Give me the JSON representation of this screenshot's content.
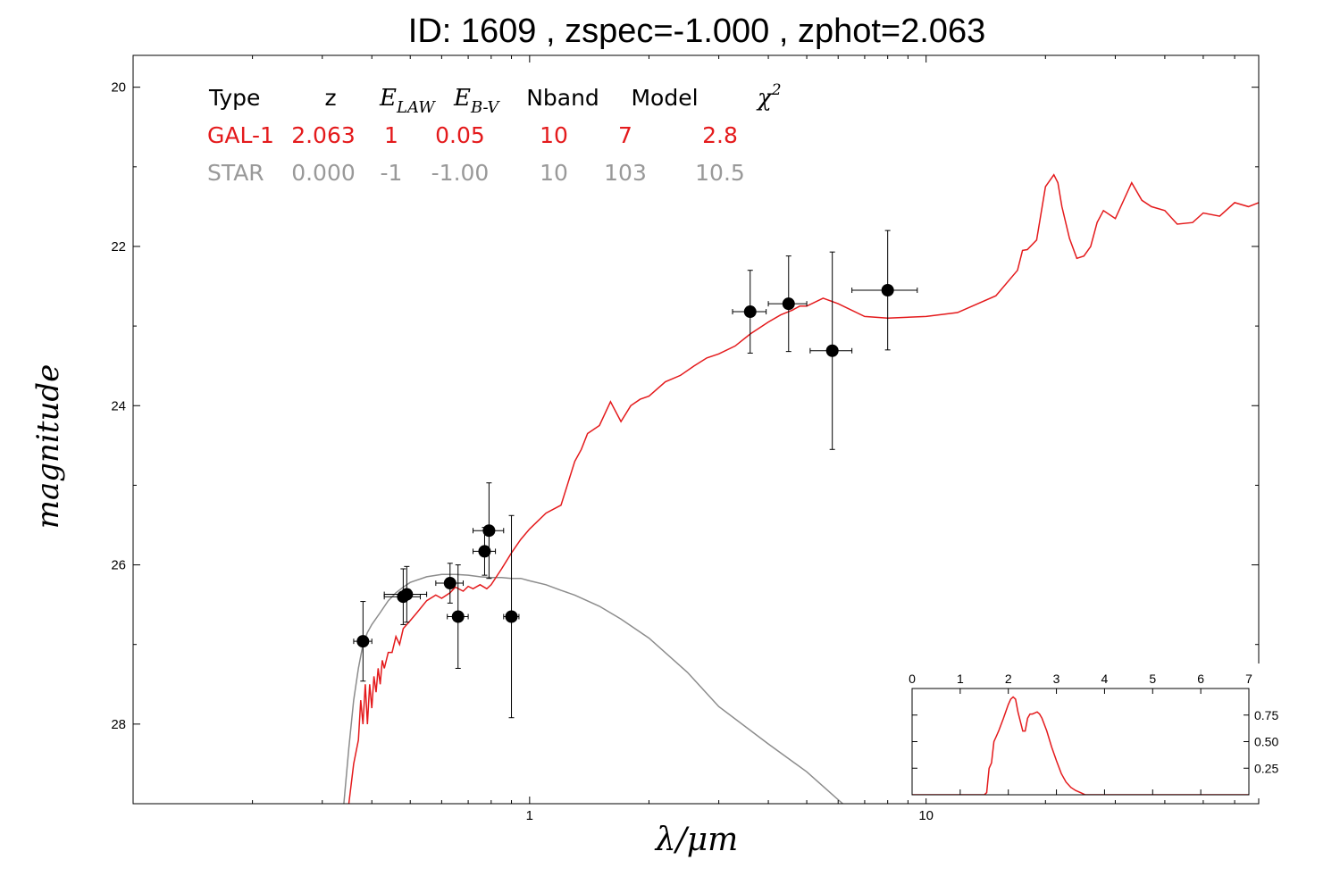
{
  "title": "ID:  1609  , zspec=-1.000 , zphot=2.063",
  "colors": {
    "galaxy": "#e41a1c",
    "star": "#8c8c8c",
    "points": "#000000"
  },
  "table": {
    "headers": [
      "Type",
      "z",
      "E_LAW",
      "E_B-V",
      "Nband",
      "Model",
      "χ²"
    ],
    "rows": [
      {
        "color": "#e41a1c",
        "cells": [
          "GAL-1",
          "2.063",
          "1",
          "0.05",
          "10",
          "7",
          "2.8"
        ]
      },
      {
        "color": "#999999",
        "cells": [
          "STAR",
          "0.000",
          "-1",
          "-1.00",
          "10",
          "103",
          "10.5"
        ]
      }
    ]
  },
  "chart_data": [
    {
      "type": "scatter",
      "title": "ID:  1609  , zspec=-1.000 , zphot=2.063",
      "xlabel": "λ/μm",
      "ylabel": "magnitude",
      "xscale": "log",
      "xlim": [
        0.1,
        69
      ],
      "ylim": [
        29,
        19.6
      ],
      "yinverted": true,
      "xticks": [
        1,
        10
      ],
      "yticks": [
        20,
        22,
        24,
        26,
        28
      ],
      "grid": false,
      "photometry": [
        {
          "x": 0.38,
          "y": 26.96,
          "xerr": 0.02,
          "yerr": 0.5
        },
        {
          "x": 0.48,
          "y": 26.4,
          "xerr": 0.05,
          "yerr": 0.35
        },
        {
          "x": 0.49,
          "y": 26.37,
          "xerr": 0.06,
          "yerr": 0.35
        },
        {
          "x": 0.63,
          "y": 26.23,
          "xerr": 0.05,
          "yerr": 0.25
        },
        {
          "x": 0.66,
          "y": 26.65,
          "xerr": 0.04,
          "yerr": 0.65
        },
        {
          "x": 0.77,
          "y": 25.83,
          "xerr": 0.05,
          "yerr": 0.3
        },
        {
          "x": 0.79,
          "y": 25.57,
          "xerr": 0.07,
          "yerr": 0.6
        },
        {
          "x": 0.9,
          "y": 26.65,
          "xerr": 0.04,
          "yerr": 1.27
        },
        {
          "x": 3.6,
          "y": 22.82,
          "xerr": 0.35,
          "yerr": 0.52
        },
        {
          "x": 4.5,
          "y": 22.72,
          "xerr": 0.5,
          "yerr": 0.6
        },
        {
          "x": 5.8,
          "y": 23.31,
          "xerr": 0.7,
          "yerr": 1.24
        },
        {
          "x": 8.0,
          "y": 22.55,
          "xerr": 1.5,
          "yerr": 0.75
        }
      ],
      "series": [
        {
          "name": "GAL-1",
          "x": [
            0.35,
            0.36,
            0.37,
            0.375,
            0.38,
            0.385,
            0.39,
            0.395,
            0.4,
            0.405,
            0.41,
            0.415,
            0.42,
            0.425,
            0.43,
            0.44,
            0.45,
            0.46,
            0.47,
            0.48,
            0.5,
            0.52,
            0.55,
            0.58,
            0.6,
            0.63,
            0.65,
            0.68,
            0.7,
            0.72,
            0.75,
            0.78,
            0.8,
            0.85,
            0.9,
            0.95,
            1.0,
            1.1,
            1.2,
            1.3,
            1.35,
            1.4,
            1.5,
            1.6,
            1.7,
            1.8,
            1.9,
            2.0,
            2.2,
            2.4,
            2.6,
            2.8,
            3.0,
            3.3,
            3.6,
            4.0,
            4.3,
            4.6,
            4.8,
            5.0,
            5.5,
            6.0,
            7.0,
            8.0,
            10,
            12,
            15,
            17,
            17.5,
            18,
            19,
            20,
            21,
            21.5,
            22,
            23,
            24,
            25,
            26,
            27,
            28,
            30,
            33,
            35,
            37,
            40,
            43,
            47,
            50,
            55,
            60,
            65,
            69
          ],
          "y": [
            29,
            28.5,
            28.2,
            27.7,
            28.0,
            27.5,
            28.0,
            27.5,
            27.8,
            27.4,
            27.6,
            27.3,
            27.5,
            27.2,
            27.3,
            27.1,
            27.1,
            26.9,
            27.0,
            26.8,
            26.7,
            26.6,
            26.45,
            26.38,
            26.42,
            26.35,
            26.28,
            26.33,
            26.27,
            26.3,
            26.25,
            26.3,
            26.25,
            26.05,
            25.85,
            25.68,
            25.55,
            25.35,
            25.25,
            24.7,
            24.55,
            24.35,
            24.25,
            23.95,
            24.2,
            24.0,
            23.92,
            23.88,
            23.7,
            23.62,
            23.5,
            23.4,
            23.35,
            23.25,
            23.1,
            22.95,
            22.86,
            22.8,
            22.75,
            22.75,
            22.65,
            22.72,
            22.88,
            22.9,
            22.88,
            22.83,
            22.62,
            22.3,
            22.05,
            22.04,
            21.92,
            21.25,
            21.1,
            21.2,
            21.5,
            21.9,
            22.15,
            22.12,
            22.0,
            21.7,
            21.55,
            21.65,
            21.2,
            21.42,
            21.5,
            21.55,
            21.72,
            21.7,
            21.58,
            21.62,
            21.45,
            21.5,
            21.45
          ],
          "color": "#e41a1c"
        },
        {
          "name": "STAR",
          "x": [
            0.34,
            0.35,
            0.36,
            0.37,
            0.38,
            0.39,
            0.4,
            0.42,
            0.44,
            0.46,
            0.48,
            0.5,
            0.55,
            0.6,
            0.65,
            0.7,
            0.75,
            0.8,
            0.85,
            0.9,
            0.95,
            1.0,
            1.1,
            1.2,
            1.3,
            1.5,
            1.7,
            2.0,
            2.5,
            3.0,
            4.0,
            5.0,
            6.0,
            6.5
          ],
          "y": [
            29,
            28.3,
            27.7,
            27.3,
            27.0,
            26.85,
            26.75,
            26.6,
            26.45,
            26.35,
            26.28,
            26.22,
            26.15,
            26.12,
            26.12,
            26.13,
            26.15,
            26.16,
            26.16,
            26.17,
            26.17,
            26.2,
            26.25,
            26.32,
            26.38,
            26.52,
            26.68,
            26.92,
            27.35,
            27.78,
            28.25,
            28.6,
            28.95,
            29.1
          ],
          "color": "#8c8c8c"
        }
      ]
    },
    {
      "type": "line",
      "xlim": [
        0,
        7
      ],
      "ylim": [
        0,
        1
      ],
      "xticks": [
        0,
        1,
        2,
        3,
        4,
        5,
        6,
        7
      ],
      "yticks": [
        0.25,
        0.5,
        0.75
      ],
      "series": [
        {
          "x": [
            0,
            1.0,
            1.5,
            1.55,
            1.6,
            1.65,
            1.7,
            1.75,
            1.8,
            1.9,
            2.0,
            2.05,
            2.1,
            2.15,
            2.2,
            2.3,
            2.35,
            2.4,
            2.45,
            2.5,
            2.55,
            2.6,
            2.65,
            2.7,
            2.8,
            2.9,
            3.0,
            3.1,
            3.2,
            3.3,
            3.4,
            3.5,
            3.6,
            7
          ],
          "y": [
            0,
            0,
            0,
            0.02,
            0.25,
            0.3,
            0.5,
            0.55,
            0.6,
            0.72,
            0.85,
            0.9,
            0.92,
            0.9,
            0.78,
            0.6,
            0.6,
            0.72,
            0.76,
            0.76,
            0.77,
            0.78,
            0.76,
            0.72,
            0.6,
            0.45,
            0.32,
            0.2,
            0.12,
            0.07,
            0.04,
            0.02,
            0.0,
            0
          ],
          "color": "#e41a1c"
        }
      ]
    }
  ]
}
